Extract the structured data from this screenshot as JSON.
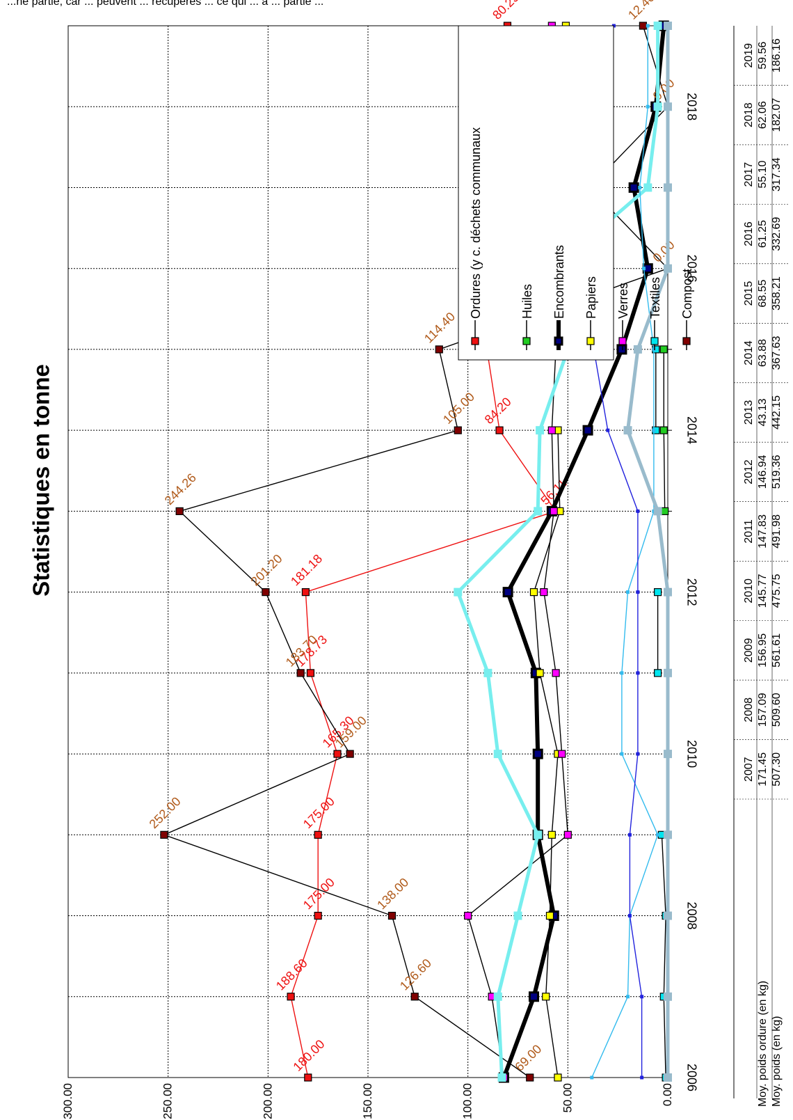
{
  "page": {
    "clipped_header": "...ne partie, car ... peuvent ... récupérés ... ce qui ... à ... partie ..."
  },
  "chart_data": {
    "type": "line",
    "title": "Statistiques en tonne",
    "xlabel": "",
    "ylabel": "",
    "ylim": [
      0,
      300
    ],
    "y_ticks": [
      "0.00",
      "50.00",
      "100.00",
      "150.00",
      "200.00",
      "250.00",
      "300.00"
    ],
    "x_positions": [
      2006,
      2007,
      2008,
      2009,
      2010,
      2011,
      2012,
      2013,
      2014,
      2015,
      2016,
      2017,
      2018,
      2019
    ],
    "x_tick_labels": [
      {
        "x": 2006,
        "label": "2006"
      },
      {
        "x": 2008,
        "label": "2008"
      },
      {
        "x": 2010,
        "label": "2010"
      },
      {
        "x": 2012,
        "label": "2012"
      },
      {
        "x": 2014,
        "label": "2014"
      },
      {
        "x": 2016,
        "label": "2016"
      },
      {
        "x": 2018,
        "label": "2018"
      }
    ],
    "grid": true,
    "legend_position": "top-right",
    "series": [
      {
        "name": "Ordures (y c. déchets communaux",
        "color": "#ee1111",
        "marker": "#ee1111",
        "values": [
          180.0,
          188.6,
          175.0,
          175.0,
          165.3,
          178.73,
          181.18,
          56.11,
          84.2,
          90.49,
          80.3,
          74.71,
          83.59,
          80.23
        ],
        "labels": [
          "180.00",
          "188.60",
          "175.00",
          "175.00",
          "165.30",
          "178.73",
          "181.18",
          "56.11",
          "84.20",
          "90.49",
          "80.30",
          "74.71",
          "83.59",
          "80.23"
        ],
        "label_color": "#ee1111"
      },
      {
        "name": "Huiles",
        "color": "#000000",
        "marker": "#22cc22",
        "values": [
          null,
          null,
          null,
          null,
          null,
          null,
          null,
          1.5,
          2.0,
          2.0,
          null,
          null,
          null,
          null
        ],
        "labels": []
      },
      {
        "name": "Encombrants",
        "color": "#000000",
        "marker": "#000080",
        "thick": true,
        "values": [
          82,
          67,
          57,
          65,
          65,
          66,
          80,
          58,
          40,
          23,
          10,
          17,
          6,
          2
        ],
        "labels": []
      },
      {
        "name": "Papiers",
        "color": "#000000",
        "marker": "#ffff00",
        "values": [
          55,
          61,
          59,
          58,
          55,
          64,
          67,
          54,
          55,
          null,
          null,
          null,
          null,
          51
        ],
        "labels": []
      },
      {
        "name": "Verres",
        "color": "#000000",
        "marker": "#ff00ff",
        "values": [
          82,
          88,
          100,
          50,
          53,
          56,
          62,
          57,
          58,
          56,
          59,
          56,
          56,
          58
        ],
        "labels": []
      },
      {
        "name": "Textiles",
        "color": "#000000",
        "marker": "#00e5ee",
        "values": [
          1.0,
          2.0,
          1.0,
          3.0,
          null,
          5.0,
          5.0,
          null,
          6.0,
          6.0,
          null,
          null,
          null,
          null
        ],
        "labels": []
      },
      {
        "name": "Compost",
        "color": "#000000",
        "marker": "#800000",
        "values": [
          69.0,
          126.6,
          138.0,
          252.0,
          159.0,
          183.7,
          201.2,
          244.26,
          105.0,
          114.4,
          0.0,
          39.0,
          0.0,
          12.4
        ],
        "labels": [
          "69.00",
          "126.60",
          "138.00",
          "252.00",
          "159.00",
          "183.70",
          "201.20",
          "244.26",
          "105.00",
          "114.40",
          "0.00",
          "39.00",
          "0.00",
          "12.40"
        ],
        "label_color": "#b05a1a"
      },
      {
        "name": "Série turquoise épaisse",
        "color": "#77eeee",
        "thick": true,
        "no_legend": true,
        "values": [
          83,
          85,
          75,
          65,
          85,
          90,
          105,
          65,
          64,
          50,
          57,
          10,
          5,
          5
        ],
        "labels": []
      },
      {
        "name": "Série bleu ciel",
        "color": "#33bbee",
        "no_legend": true,
        "values": [
          38,
          20,
          19,
          5,
          23,
          23,
          20,
          7,
          7,
          7,
          12,
          14,
          10,
          10
        ],
        "labels": []
      },
      {
        "name": "Série bleue",
        "color": "#2222dd",
        "no_legend": true,
        "values": [
          13,
          13,
          19,
          19,
          15,
          15,
          15,
          15,
          30,
          37,
          null,
          null,
          null,
          27
        ],
        "labels": []
      },
      {
        "name": "Série grise",
        "color": "#99bbcc",
        "thick": true,
        "no_legend": true,
        "values": [
          0,
          0,
          0,
          0,
          0,
          0,
          0,
          5,
          20,
          15,
          0,
          0,
          0,
          0
        ],
        "labels": []
      }
    ],
    "table": {
      "years": [
        "2007",
        "2008",
        "2009",
        "2010",
        "2011",
        "2012",
        "2013",
        "2014",
        "2015",
        "2016",
        "2017",
        "2018",
        "2019"
      ],
      "rows": [
        {
          "label": "Moy. poids ordure (en kg)",
          "values": [
            "171.45",
            "157.09",
            "156.95",
            "145.77",
            "147.83",
            "146.94",
            "43.13",
            "63.88",
            "68.55",
            "61.25",
            "55.10",
            "62.06",
            "59.56"
          ]
        },
        {
          "label": "Moy. poids (en kg)",
          "values": [
            "507.30",
            "509.60",
            "561.61",
            "475.75",
            "491.98",
            "519.36",
            "442.15",
            "367.63",
            "358.21",
            "332.69",
            "317.34",
            "182.07",
            "186.16"
          ]
        }
      ]
    }
  }
}
